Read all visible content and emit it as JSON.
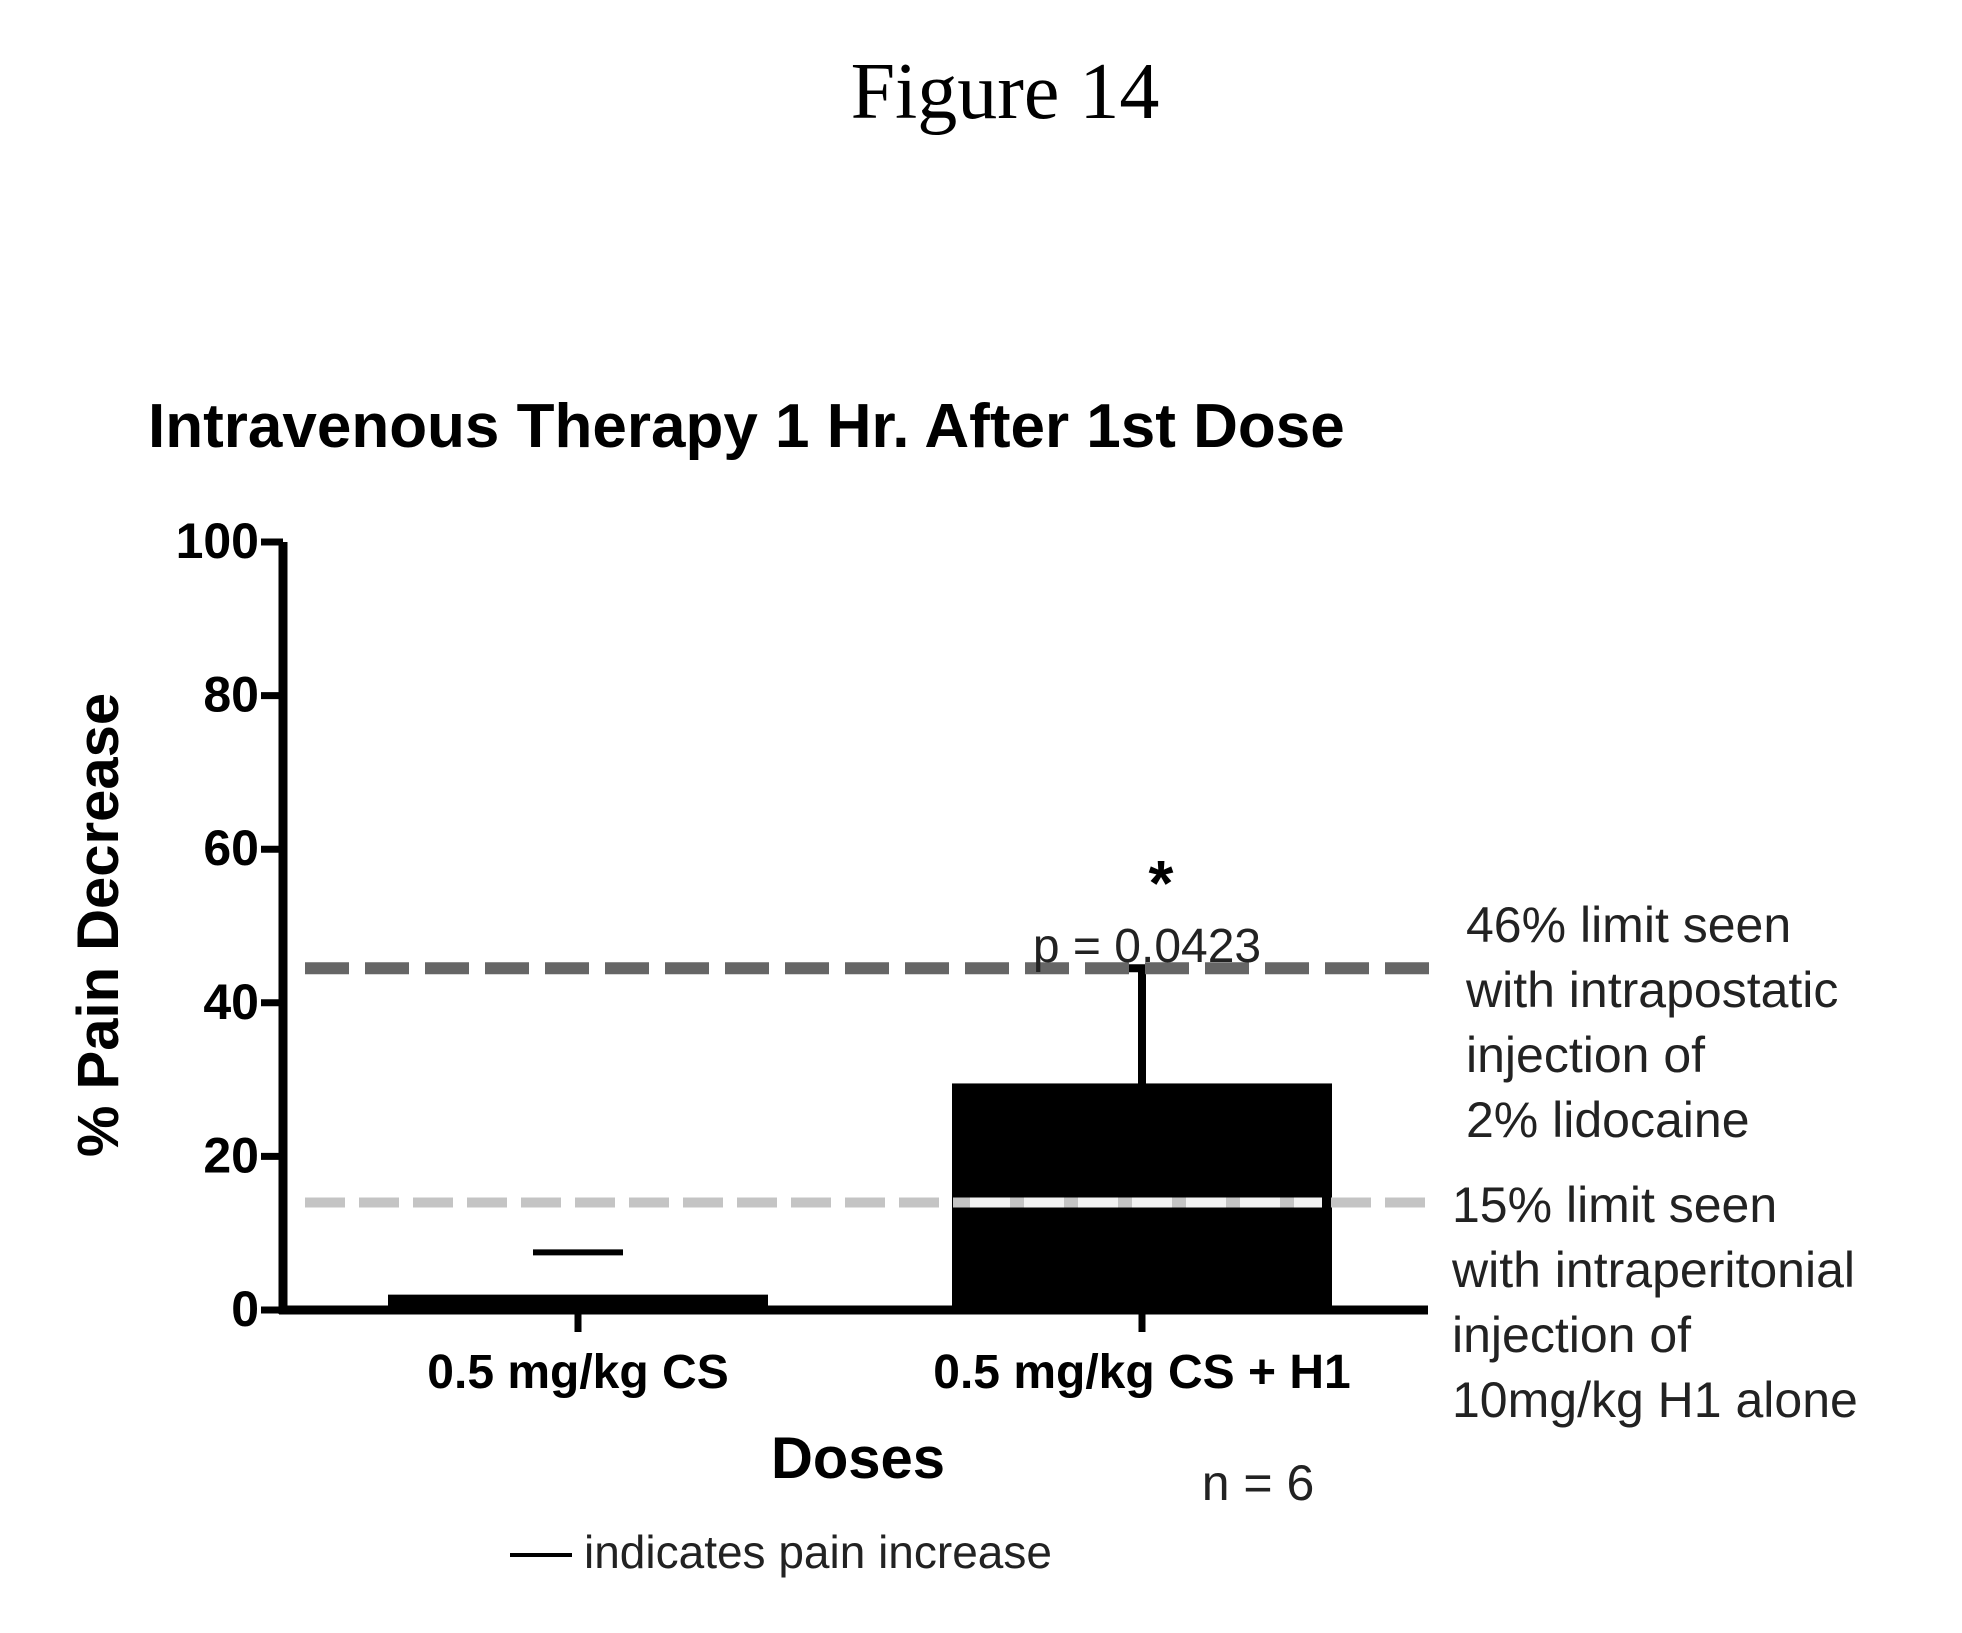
{
  "figure_label": "Figure 14",
  "chart_data": {
    "type": "bar",
    "title": "Intravenous Therapy 1 Hr. After 1st Dose",
    "xlabel": "Doses",
    "ylabel": "% Pain Decrease",
    "ylim": [
      0,
      100
    ],
    "yticks": [
      "0",
      "20",
      "40",
      "60",
      "80",
      "100"
    ],
    "categories": [
      "0.5 mg/kg CS",
      "0.5 mg/kg CS + H1"
    ],
    "values": [
      2,
      29.5
    ],
    "error_upper": [
      null,
      44.5
    ],
    "error_lower": [
      null,
      null
    ],
    "pain_increase_marker": [
      7.5,
      null
    ],
    "bar_color": "#000000",
    "significance": {
      "star": "*",
      "p_value": "p = 0.0423",
      "category_index": 1
    },
    "reference_lines": [
      {
        "value": 44.5,
        "style": "dashed-dark",
        "label_lines": [
          "46% limit seen",
          "with intrapostatic",
          "injection of",
          "2% lidocaine"
        ]
      },
      {
        "value": 14,
        "style": "dashed-light",
        "label_lines": [
          "15% limit seen",
          "with intraperitonial",
          "injection of",
          "10mg/kg H1 alone"
        ]
      }
    ],
    "sample_size": "n = 6",
    "legend_note": {
      "text": "indicates pain increase"
    },
    "grid": false
  }
}
